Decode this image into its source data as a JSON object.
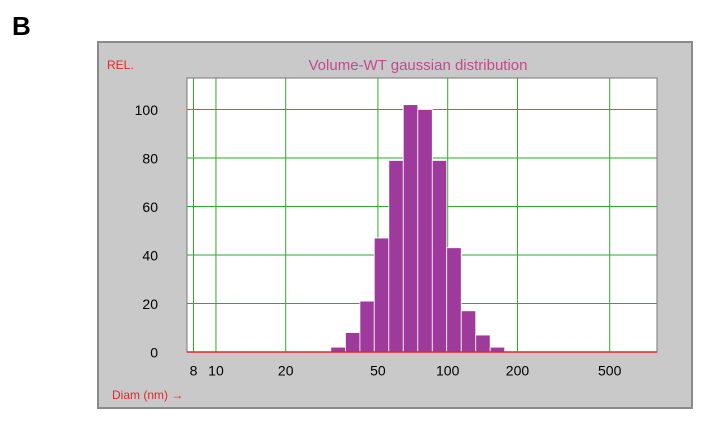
{
  "panel_label": "B",
  "chart_data": {
    "type": "histogram",
    "title": "Volume-WT gaussian distribution",
    "y_label": "REL.",
    "x_label": "Diam (nm) →",
    "bins": [
      31.3,
      36.2,
      41.8,
      48.2,
      55.7,
      64.3,
      74.3,
      85.8,
      99.0,
      114.4,
      132.1,
      152.5,
      176.1
    ],
    "values": [
      2,
      8,
      21,
      47,
      79,
      102,
      100,
      79,
      43,
      17,
      7,
      2
    ],
    "color": "#9e3a9c",
    "log_x": true,
    "grid": true,
    "grid_color": "#2eaa2e",
    "xlim": [
      7.5,
      800
    ],
    "ylim": [
      0,
      113
    ],
    "xticks": [
      8,
      10,
      20,
      50,
      100,
      200,
      500
    ],
    "yticks": [
      0,
      20,
      40,
      60,
      80,
      100
    ]
  }
}
